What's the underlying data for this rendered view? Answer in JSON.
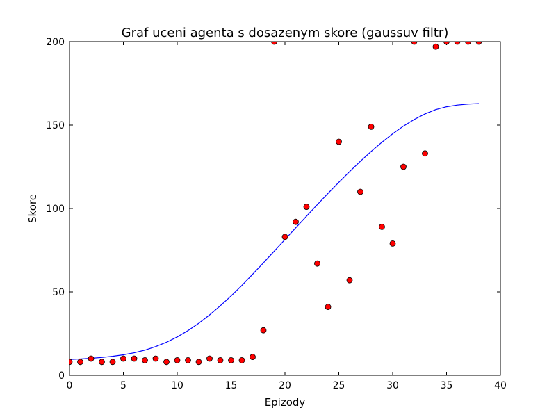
{
  "chart_data": {
    "type": "scatter",
    "title": "Graf uceni agenta s dosazenym skore (gaussuv filtr)",
    "xlabel": "Epizody",
    "ylabel": "Skore",
    "xlim": [
      0,
      40
    ],
    "ylim": [
      0,
      200
    ],
    "xticks": [
      0,
      5,
      10,
      15,
      20,
      25,
      30,
      35,
      40
    ],
    "yticks": [
      0,
      50,
      100,
      150,
      200
    ],
    "grid": false,
    "colors": {
      "points": "#ff0000",
      "point_edge": "#000000",
      "line": "#0000ff"
    },
    "series": [
      {
        "kind": "scatter",
        "x": [
          0,
          1,
          2,
          3,
          4,
          5,
          6,
          7,
          8,
          9,
          10,
          11,
          12,
          13,
          14,
          15,
          16,
          17,
          18,
          19,
          20,
          21,
          22,
          23,
          24,
          25,
          26,
          27,
          28,
          29,
          30,
          31,
          32,
          33,
          34,
          35,
          36,
          37,
          38
        ],
        "y": [
          8,
          8,
          10,
          8,
          8,
          10,
          10,
          9,
          10,
          8,
          9,
          9,
          8,
          10,
          9,
          9,
          9,
          11,
          27,
          200,
          83,
          92,
          101,
          67,
          41,
          140,
          57,
          110,
          149,
          89,
          79,
          125,
          200,
          133,
          197,
          200,
          200,
          200,
          200
        ]
      },
      {
        "kind": "line",
        "x": [
          0,
          1,
          2,
          3,
          4,
          5,
          6,
          7,
          8,
          9,
          10,
          11,
          12,
          13,
          14,
          15,
          16,
          17,
          18,
          19,
          20,
          21,
          22,
          23,
          24,
          25,
          26,
          27,
          28,
          29,
          30,
          31,
          32,
          33,
          34,
          35,
          36,
          37,
          38
        ],
        "y": [
          9.5,
          9.8,
          10.2,
          10.7,
          11.4,
          12.3,
          13.5,
          15.1,
          17.2,
          19.8,
          23.0,
          26.8,
          31.2,
          36.2,
          41.7,
          47.6,
          53.9,
          60.6,
          67.4,
          74.4,
          81.4,
          88.4,
          95.4,
          102.3,
          109.1,
          115.7,
          122.1,
          128.3,
          134.2,
          139.7,
          144.8,
          149.4,
          153.4,
          156.7,
          159.3,
          161.0,
          162.0,
          162.6,
          162.9
        ]
      }
    ]
  }
}
